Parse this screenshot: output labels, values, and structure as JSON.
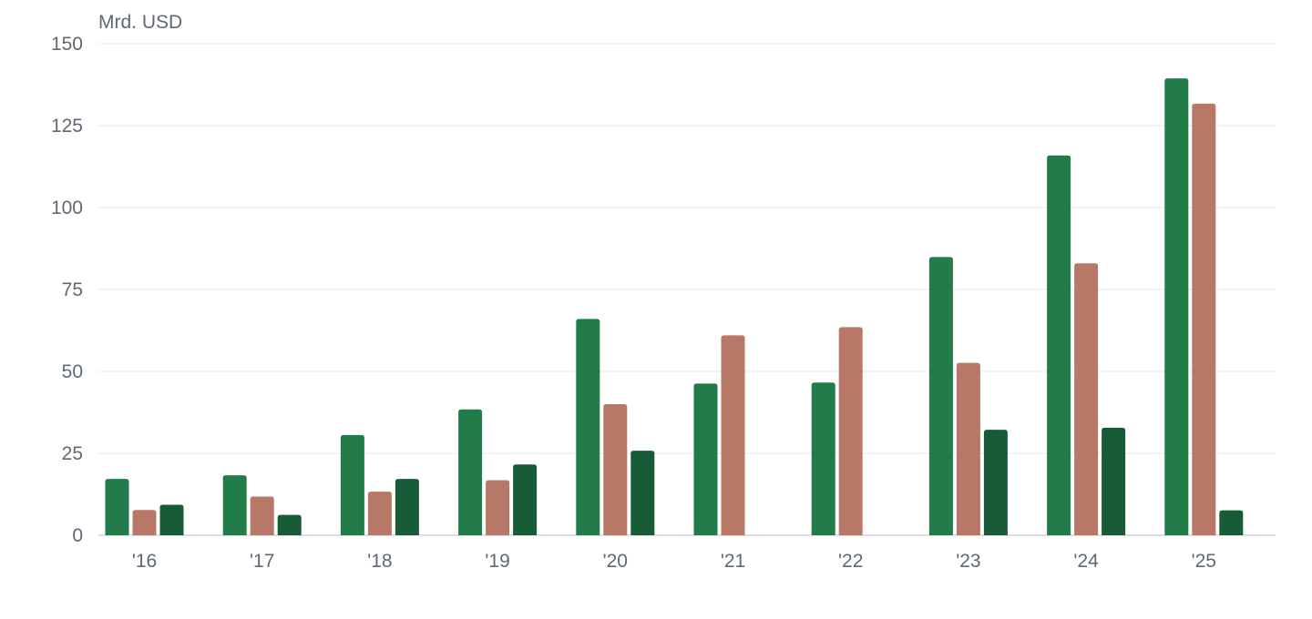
{
  "chart_data": {
    "type": "bar",
    "title": "",
    "unit_label": "Mrd. USD",
    "xlabel": "",
    "ylabel": "Mrd. USD",
    "categories": [
      "'16",
      "'17",
      "'18",
      "'19",
      "'20",
      "'21",
      "'22",
      "'23",
      "'24",
      "'25"
    ],
    "y_ticks": [
      0,
      25,
      50,
      75,
      100,
      125,
      150
    ],
    "ylim": [
      0,
      150
    ],
    "grid": true,
    "legend": "none",
    "series": [
      {
        "color": "#217c4a",
        "values": [
          17.2,
          18.3,
          30.6,
          38.4,
          66.0,
          46.3,
          46.6,
          84.9,
          115.9,
          139.4
        ]
      },
      {
        "color": "#b87868",
        "values": [
          7.7,
          11.8,
          13.3,
          16.8,
          40.0,
          61.0,
          63.5,
          52.6,
          83.0,
          131.7
        ]
      },
      {
        "color": "#175c36",
        "values": [
          9.3,
          6.2,
          17.2,
          21.6,
          25.8,
          null,
          null,
          32.2,
          32.8,
          7.6
        ]
      }
    ]
  }
}
